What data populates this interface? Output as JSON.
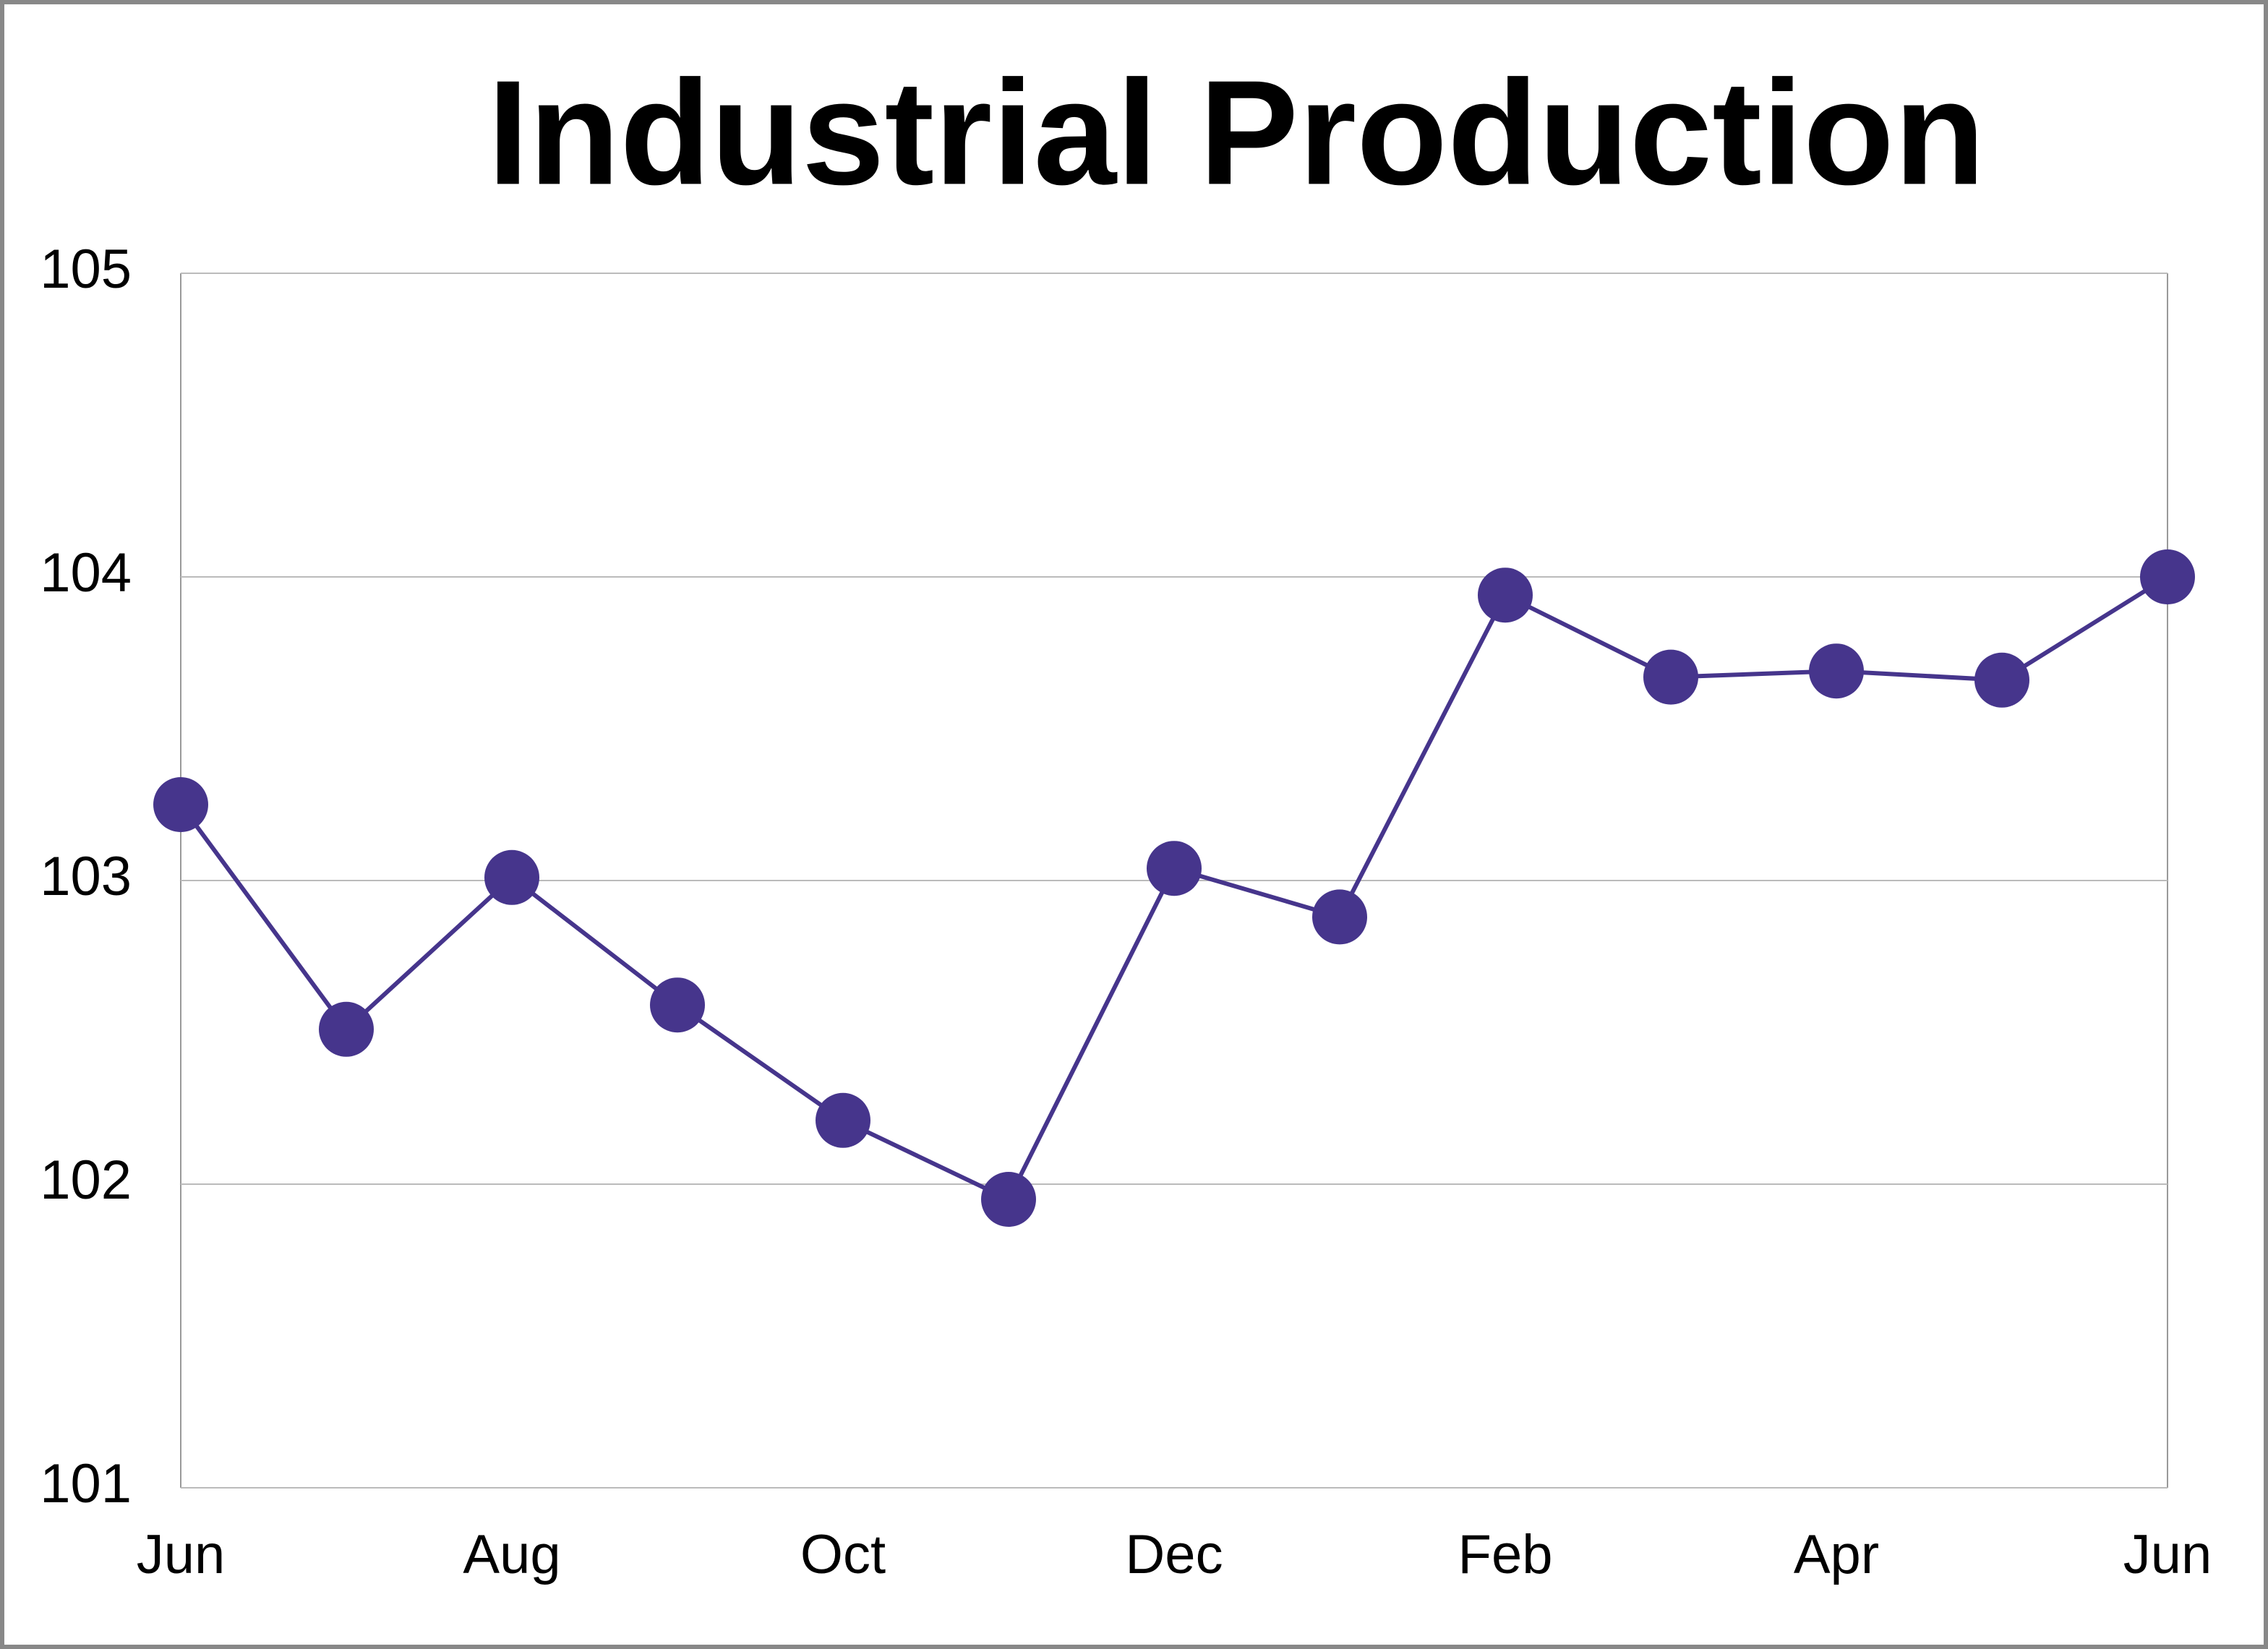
{
  "chart_data": {
    "type": "line",
    "title": "Industrial Production",
    "categories": [
      "Jun",
      null,
      "Aug",
      null,
      "Oct",
      null,
      "Dec",
      null,
      "Feb",
      null,
      "Apr",
      null,
      "Jun"
    ],
    "series": [
      {
        "color": "#46358c",
        "values": [
          103.25,
          102.51,
          103.01,
          102.59,
          102.21,
          101.95,
          103.04,
          102.88,
          103.94,
          103.67,
          103.69,
          103.66,
          104.0
        ]
      }
    ],
    "ylim": [
      101,
      105
    ],
    "yticks": [
      101,
      102,
      103,
      104,
      105
    ],
    "grid": true
  }
}
